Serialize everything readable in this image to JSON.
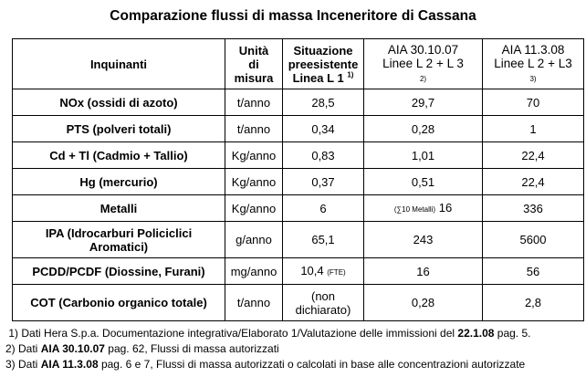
{
  "title": "Comparazione flussi di massa Inceneritore di Cassana",
  "header": {
    "col1": "Inquinanti",
    "col2_l1": "Unità",
    "col2_l2": "di",
    "col2_l3": "misura",
    "col3_l1": "Situazione",
    "col3_l2": "preesistente",
    "col3_l3": "Linea L 1",
    "col3_sup": "1)",
    "col4_l1": "AIA 30.10.07",
    "col4_l2": "Linee L 2 + L 3",
    "col4_sup": "2)",
    "col5_l1": "AIA 11.3.08",
    "col5_l2": "Linee L 2 + L3",
    "col5_sup": "3)"
  },
  "rows": [
    {
      "name": "NOx (ossidi di azoto)",
      "unit": "t/anno",
      "pre": "28,5",
      "pre_note": "",
      "aia07": "29,7",
      "aia07_note": "",
      "aia08": "70"
    },
    {
      "name": "PTS (polveri totali)",
      "unit": "t/anno",
      "pre": "0,34",
      "pre_note": "",
      "aia07": "0,28",
      "aia07_note": "",
      "aia08": "1"
    },
    {
      "name": "Cd + Tl (Cadmio + Tallio)",
      "unit": "Kg/anno",
      "pre": "0,83",
      "pre_note": "",
      "aia07": "1,01",
      "aia07_note": "",
      "aia08": "22,4"
    },
    {
      "name": "Hg (mercurio)",
      "unit": "Kg/anno",
      "pre": "0,37",
      "pre_note": "",
      "aia07": "0,51",
      "aia07_note": "",
      "aia08": "22,4"
    },
    {
      "name": "Metalli",
      "unit": "Kg/anno",
      "pre": "6",
      "pre_note": "",
      "aia07": "16",
      "aia07_note": "(∑10 Metalli)",
      "aia08": "336"
    },
    {
      "name_l1": "IPA (Idrocarburi Policiclici",
      "name_l2": "Aromatici)",
      "unit": "g/anno",
      "pre": "65,1",
      "pre_note": "",
      "aia07": "243",
      "aia07_note": "",
      "aia08": "5600"
    },
    {
      "name": "PCDD/PCDF (Diossine, Furani)",
      "unit": "mg/anno",
      "pre": "10,4",
      "pre_note": "(FTE)",
      "aia07": "16",
      "aia07_note": "",
      "aia08": "56"
    },
    {
      "name": "COT (Carbonio organico totale)",
      "unit": "t/anno",
      "pre_l1": "(non",
      "pre_l2": "dichiarato)",
      "pre_note": "",
      "aia07": "0,28",
      "aia07_note": "",
      "aia08": "2,8"
    }
  ],
  "notes": {
    "n1_a": "1) Dati Hera S.p.a. Documentazione integrativa/Elaborato 1/Valutazione delle immissioni del ",
    "n1_b": "22.1.08",
    "n1_c": " pag. 5.",
    "n2_a": "2) Dati ",
    "n2_b": "AIA 30.10.07",
    "n2_c": " pag. 62, Flussi di massa autorizzati",
    "n3_a": "3) Dati ",
    "n3_b": "AIA 11.3.08",
    "n3_c": " pag. 6 e 7, Flussi di massa autorizzati o calcolati in base alle concentrazioni autorizzate"
  }
}
